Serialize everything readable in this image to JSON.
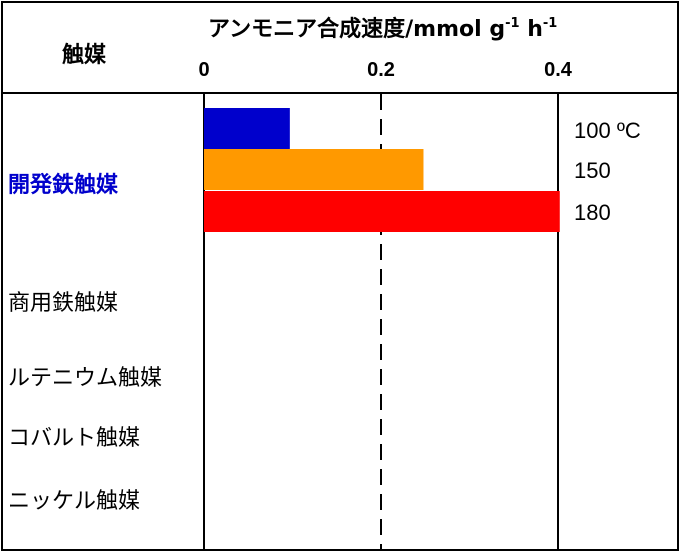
{
  "chart_data": {
    "type": "bar",
    "orientation": "horizontal",
    "title": "アンモニア合成速度/mmol g-1 h-1",
    "title_parts": {
      "main": "アンモニア合成速度/mmol g",
      "exp1": "-1",
      "mid": " h",
      "exp2": "-1"
    },
    "category_header": "触媒",
    "xlim": [
      0,
      0.4
    ],
    "x_ticks": [
      "0",
      "0.2",
      "0.4"
    ],
    "reference_line": {
      "x": 0.2,
      "style": "dashed"
    },
    "categories": [
      {
        "label": "開発鉄触媒",
        "color": "#0000cc",
        "bold": true
      },
      {
        "label": "商用鉄触媒",
        "color": "#000000",
        "bold": false
      },
      {
        "label": "ルテニウム触媒",
        "color": "#000000",
        "bold": false
      },
      {
        "label": "コバルト触媒",
        "color": "#000000",
        "bold": false
      },
      {
        "label": "ニッケル触媒",
        "color": "#000000",
        "bold": false
      }
    ],
    "series": [
      {
        "name": "100 ºC",
        "color": "#0000cc",
        "values": [
          0.097,
          null,
          null,
          null,
          null
        ]
      },
      {
        "name": "150",
        "color": "#ff9900",
        "values": [
          0.248,
          null,
          null,
          null,
          null
        ]
      },
      {
        "name": "180",
        "color": "#ff0000",
        "values": [
          0.402,
          null,
          null,
          null,
          null
        ]
      }
    ]
  }
}
